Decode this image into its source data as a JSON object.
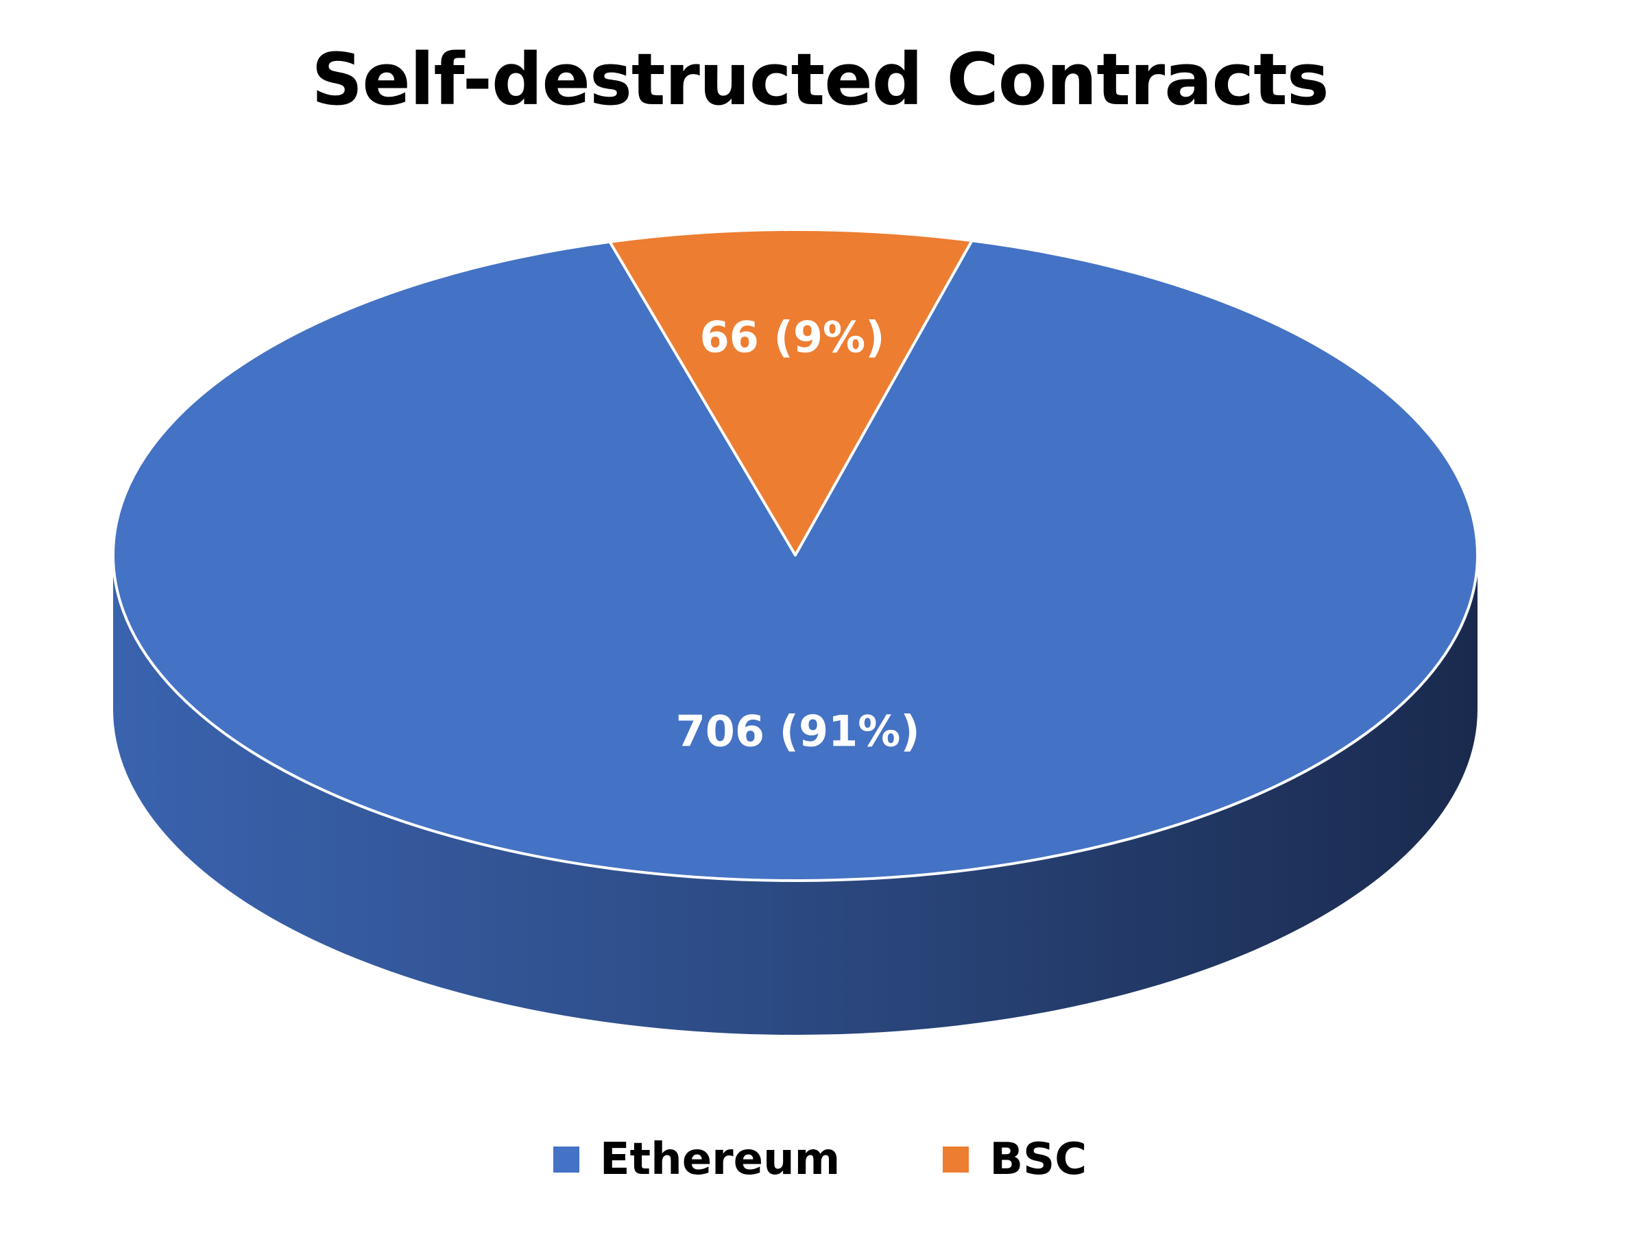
{
  "chart_data": {
    "type": "pie",
    "title": "Self-destructed Contracts",
    "style": "3d",
    "legend_position": "bottom",
    "slices": [
      {
        "name": "Ethereum",
        "value": 706,
        "percent": 91,
        "label": "706 (91%)",
        "color": "#4472C4",
        "side_color": "#2F5597"
      },
      {
        "name": "BSC",
        "value": 66,
        "percent": 9,
        "label": "66 (9%)",
        "color": "#ED7D31",
        "side_color": "#B85C1E"
      }
    ]
  }
}
